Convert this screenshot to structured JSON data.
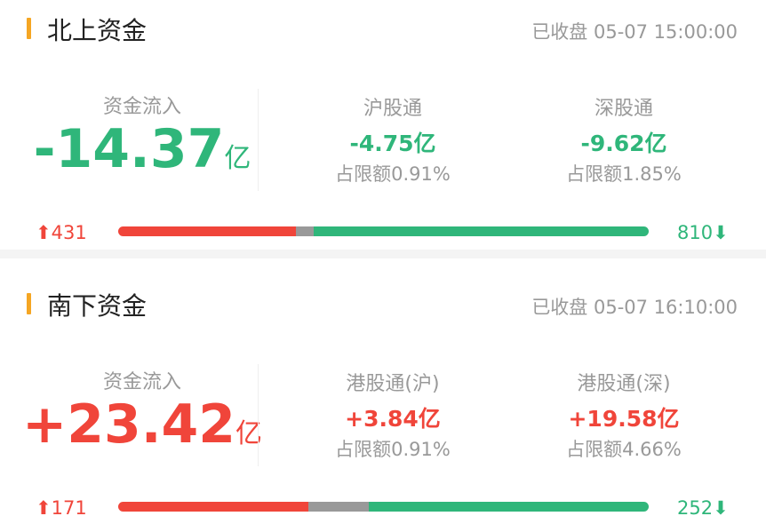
{
  "colors": {
    "up": "#f0453a",
    "down": "#2fb67a",
    "flat": "#999999",
    "accent": "#f5a623"
  },
  "sections": [
    {
      "title": "北上资金",
      "time": "已收盘 05-07 15:00:00",
      "flow_label": "资金流入",
      "flow_value": "-14.37",
      "flow_unit": "亿",
      "direction": "down",
      "subs": [
        {
          "label": "沪股通",
          "value": "-4.75亿",
          "ratio": "占限额0.91%",
          "direction": "down"
        },
        {
          "label": "深股通",
          "value": "-9.62亿",
          "ratio": "占限额1.85%",
          "direction": "down"
        }
      ],
      "up_count": "431",
      "down_count": "810",
      "bar": {
        "up": 0.335,
        "flat": 0.034,
        "down": 0.631
      }
    },
    {
      "title": "南下资金",
      "time": "已收盘 05-07 16:10:00",
      "flow_label": "资金流入",
      "flow_value": "+23.42",
      "flow_unit": "亿",
      "direction": "up",
      "subs": [
        {
          "label": "港股通(沪)",
          "value": "+3.84亿",
          "ratio": "占限额0.91%",
          "direction": "up"
        },
        {
          "label": "港股通(深)",
          "value": "+19.58亿",
          "ratio": "占限额4.66%",
          "direction": "up"
        }
      ],
      "up_count": "171",
      "down_count": "252",
      "bar": {
        "up": 0.358,
        "flat": 0.114,
        "down": 0.528
      }
    }
  ]
}
